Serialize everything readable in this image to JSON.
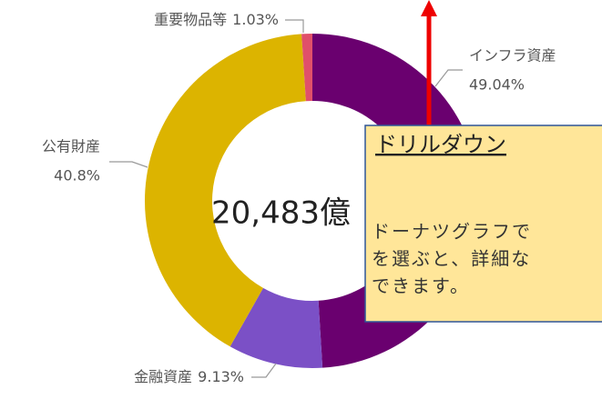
{
  "chart_data": {
    "type": "pie",
    "donut": true,
    "categories": [
      "インフラ資産",
      "金融資産",
      "公有財産",
      "重要物品等"
    ],
    "values": [
      49.04,
      9.13,
      40.8,
      1.03
    ],
    "value_labels": [
      "49.04%",
      "9.13%",
      "40.8%",
      "1.03%"
    ],
    "colors": [
      "#6a006f",
      "#7b50c6",
      "#dcb400",
      "#e0506a"
    ],
    "center_label": "20,483億"
  },
  "callout": {
    "title": "ドリルダウン",
    "lines": [
      "ドーナツグラフで",
      "を選ぶと、詳細な",
      "できます。"
    ]
  }
}
